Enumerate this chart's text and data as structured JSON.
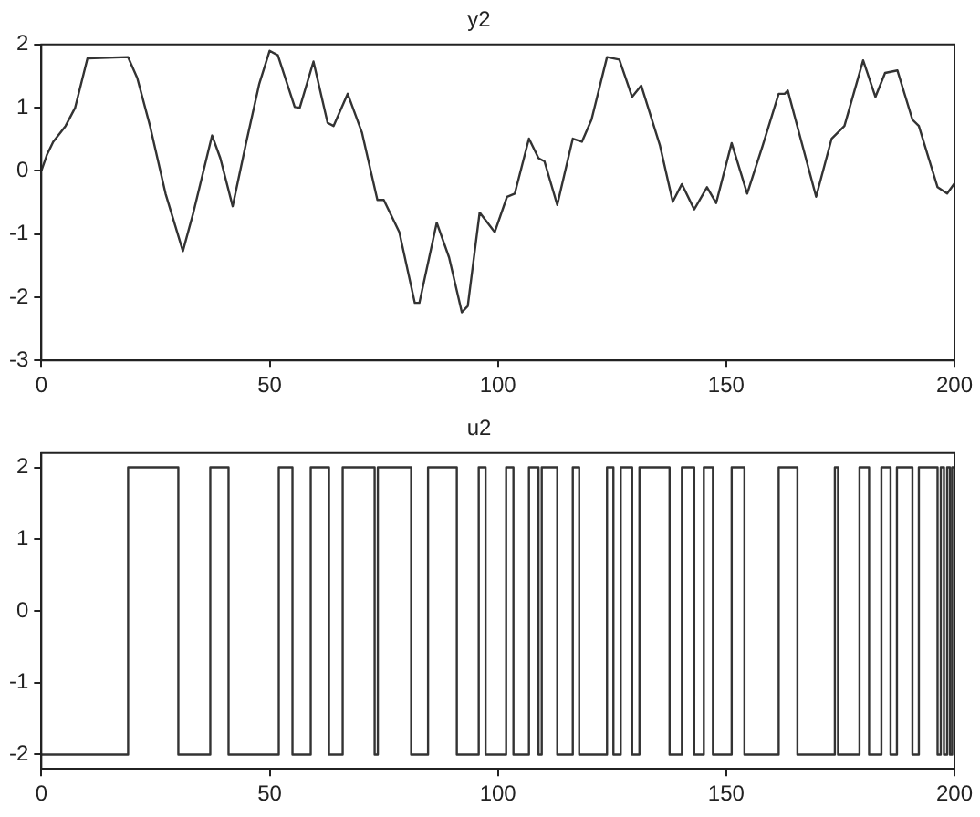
{
  "chart_data": [
    {
      "type": "line",
      "title": "y2",
      "marker": "none",
      "grid": false,
      "legend": false,
      "xlim": [
        0,
        200
      ],
      "xticks": [
        0,
        50,
        100,
        150,
        200
      ],
      "ylim": [
        -3,
        2
      ],
      "yticks": [
        -3,
        -2,
        -1,
        0,
        1,
        2
      ],
      "series": [
        {
          "color": "#333333",
          "x": [
            0,
            1.2,
            2.6,
            5.3,
            7.4,
            10.1,
            19,
            21,
            23.8,
            27.2,
            31,
            33.3,
            37.4,
            39.2,
            41.9,
            44.9,
            47.7,
            50,
            51.8,
            55.5,
            56.6,
            59.6,
            62.7,
            64,
            67.1,
            70.2,
            73.6,
            75,
            78.4,
            81.8,
            82.8,
            86.6,
            89.3,
            92.1,
            93.4,
            96,
            99.3,
            102,
            103.7,
            106.8,
            108.9,
            110.2,
            113,
            116.4,
            118.4,
            120.5,
            123.9,
            126.6,
            129.4,
            131.4,
            135.5,
            138.3,
            140.3,
            143,
            145.8,
            147.8,
            151.2,
            154.6,
            158,
            161.5,
            162.8,
            163.5,
            166.3,
            169.7,
            173.1,
            175.9,
            180,
            182.7,
            184.8,
            187.5,
            190.8,
            192.2,
            196.3,
            198.4,
            200
          ],
          "values": [
            0,
            0.25,
            0.46,
            0.71,
            1.0,
            1.78,
            1.8,
            1.47,
            0.71,
            -0.36,
            -1.27,
            -0.66,
            0.56,
            0.2,
            -0.56,
            0.46,
            1.37,
            1.9,
            1.83,
            1.01,
            1.0,
            1.73,
            0.76,
            0.71,
            1.22,
            0.61,
            -0.46,
            -0.46,
            -0.97,
            -2.09,
            -2.09,
            -0.82,
            -1.37,
            -2.24,
            -2.14,
            -0.66,
            -0.97,
            -0.41,
            -0.36,
            0.51,
            0.2,
            0.15,
            -0.54,
            0.51,
            0.46,
            0.81,
            1.8,
            1.76,
            1.17,
            1.35,
            0.4,
            -0.49,
            -0.21,
            -0.61,
            -0.26,
            -0.51,
            0.44,
            -0.36,
            0.4,
            1.22,
            1.22,
            1.27,
            0.51,
            -0.41,
            0.51,
            0.71,
            1.75,
            1.17,
            1.55,
            1.59,
            0.81,
            0.71,
            -0.26,
            -0.36,
            -0.2
          ]
        }
      ]
    },
    {
      "type": "step",
      "title": "u2",
      "marker": "none",
      "grid": false,
      "legend": false,
      "xlim": [
        0,
        200
      ],
      "xticks": [
        0,
        50,
        100,
        150,
        200
      ],
      "ylim": [
        -2.2,
        2.2
      ],
      "yticks": [
        -2,
        -1,
        0,
        1,
        2
      ],
      "series": [
        {
          "color": "#333333",
          "x": [
            0,
            19,
            30,
            37,
            41,
            52,
            55,
            59,
            63,
            66,
            73,
            73.7,
            81,
            84.7,
            91,
            95.8,
            97.3,
            101.8,
            103.4,
            106.8,
            108.9,
            109.6,
            113,
            116.4,
            117.8,
            123.9,
            125.3,
            126.9,
            129.4,
            131,
            137.6,
            140.3,
            143,
            145.1,
            147.1,
            151.2,
            154,
            161.5,
            165.6,
            173.8,
            174.5,
            179.2,
            181.3,
            184,
            186,
            187.4,
            190.8,
            192.2,
            196.3,
            197,
            197.7,
            198.4,
            199,
            199.5,
            200
          ],
          "values": [
            -2,
            2,
            -2,
            2,
            -2,
            2,
            -2,
            2,
            -2,
            2,
            -2,
            2,
            -2,
            2,
            -2,
            2,
            -2,
            2,
            -2,
            2,
            -2,
            2,
            -2,
            2,
            -2,
            2,
            -2,
            2,
            -2,
            2,
            -2,
            2,
            -2,
            2,
            -2,
            2,
            -2,
            2,
            -2,
            2,
            -2,
            2,
            -2,
            2,
            -2,
            2,
            -2,
            2,
            -2,
            2,
            -2,
            2,
            -2,
            2,
            2
          ]
        }
      ]
    }
  ]
}
